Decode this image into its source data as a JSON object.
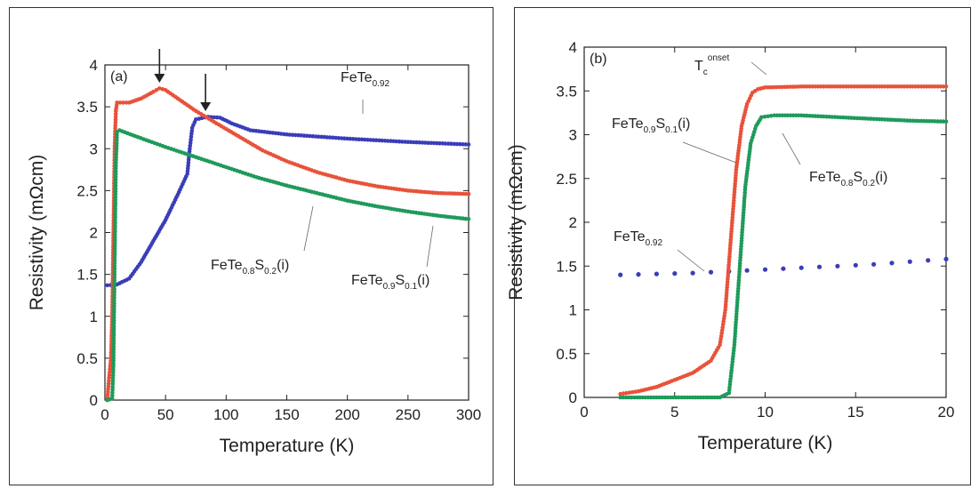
{
  "chart_data": [
    {
      "type": "scatter",
      "panel_label": "(a)",
      "xlabel": "Temperature (K)",
      "ylabel": "Resistivity (mΩcm)",
      "xlim": [
        0,
        300
      ],
      "ylim": [
        0,
        4
      ],
      "xticks": [
        "0",
        "50",
        "100",
        "150",
        "200",
        "250",
        "300"
      ],
      "yticks": [
        "0",
        "0.5",
        "1",
        "1.5",
        "2",
        "2.5",
        "3",
        "3.5",
        "4"
      ],
      "colors": {
        "FeTe0.92": "#3a3db8",
        "FeTe0.9S0.1(i)": "#e8523a",
        "FeTe0.8S0.2(i)": "#1f9a5a"
      },
      "series": [
        {
          "name": "FeTe0.92",
          "points": [
            [
              2,
              1.37
            ],
            [
              10,
              1.38
            ],
            [
              20,
              1.45
            ],
            [
              30,
              1.65
            ],
            [
              40,
              1.9
            ],
            [
              50,
              2.15
            ],
            [
              60,
              2.45
            ],
            [
              68,
              2.7
            ],
            [
              70,
              3.0
            ],
            [
              72,
              3.25
            ],
            [
              75,
              3.35
            ],
            [
              85,
              3.38
            ],
            [
              95,
              3.37
            ],
            [
              105,
              3.3
            ],
            [
              120,
              3.22
            ],
            [
              150,
              3.17
            ],
            [
              200,
              3.12
            ],
            [
              250,
              3.08
            ],
            [
              300,
              3.05
            ]
          ]
        },
        {
          "name": "FeTe0.9S0.1(i)",
          "points": [
            [
              2,
              0.0
            ],
            [
              3,
              0.2
            ],
            [
              5,
              0.5
            ],
            [
              6,
              1.0
            ],
            [
              7,
              2.0
            ],
            [
              8,
              3.0
            ],
            [
              9,
              3.45
            ],
            [
              10,
              3.55
            ],
            [
              20,
              3.55
            ],
            [
              30,
              3.6
            ],
            [
              40,
              3.68
            ],
            [
              45,
              3.72
            ],
            [
              50,
              3.7
            ],
            [
              60,
              3.6
            ],
            [
              75,
              3.45
            ],
            [
              90,
              3.32
            ],
            [
              110,
              3.15
            ],
            [
              130,
              2.98
            ],
            [
              150,
              2.85
            ],
            [
              175,
              2.72
            ],
            [
              200,
              2.62
            ],
            [
              225,
              2.55
            ],
            [
              250,
              2.5
            ],
            [
              275,
              2.47
            ],
            [
              300,
              2.46
            ]
          ]
        },
        {
          "name": "FeTe0.8S0.2(i)",
          "points": [
            [
              2,
              0.0
            ],
            [
              6,
              0.02
            ],
            [
              7,
              0.4
            ],
            [
              8,
              1.6
            ],
            [
              9,
              2.8
            ],
            [
              10,
              3.2
            ],
            [
              12,
              3.22
            ],
            [
              25,
              3.15
            ],
            [
              50,
              3.02
            ],
            [
              75,
              2.9
            ],
            [
              100,
              2.78
            ],
            [
              125,
              2.66
            ],
            [
              150,
              2.56
            ],
            [
              175,
              2.47
            ],
            [
              200,
              2.38
            ],
            [
              225,
              2.31
            ],
            [
              250,
              2.25
            ],
            [
              275,
              2.2
            ],
            [
              300,
              2.16
            ]
          ]
        }
      ],
      "arrows_at_x": [
        45,
        83
      ],
      "annotations": [
        {
          "base": "FeTe",
          "sub": "0.92",
          "tail": "",
          "sub2": "",
          "end": ""
        },
        {
          "base": "FeTe",
          "sub": "0.8",
          "tail": "S",
          "sub2": "0.2",
          "end": "(i)"
        },
        {
          "base": "FeTe",
          "sub": "0.9",
          "tail": "S",
          "sub2": "0.1",
          "end": "(i)"
        }
      ]
    },
    {
      "type": "scatter",
      "panel_label": "(b)",
      "xlabel": "Temperature (K)",
      "ylabel": "Resistivity (mΩcm)",
      "xlim": [
        0,
        20
      ],
      "ylim": [
        0,
        4
      ],
      "xticks": [
        "0",
        "5",
        "10",
        "15",
        "20"
      ],
      "yticks": [
        "0",
        "0.5",
        "1",
        "1.5",
        "2",
        "2.5",
        "3",
        "3.5",
        "4"
      ],
      "colors": {
        "FeTe0.92": "#3a3db8",
        "FeTe0.9S0.1(i)": "#e8523a",
        "FeTe0.8S0.2(i)": "#1f9a5a"
      },
      "series": [
        {
          "name": "FeTe0.92",
          "points": [
            [
              2,
              1.4
            ],
            [
              4,
              1.41
            ],
            [
              6,
              1.42
            ],
            [
              8,
              1.44
            ],
            [
              10,
              1.46
            ],
            [
              12,
              1.48
            ],
            [
              14,
              1.5
            ],
            [
              16,
              1.52
            ],
            [
              18,
              1.55
            ],
            [
              20,
              1.58
            ]
          ]
        },
        {
          "name": "FeTe0.9S0.1(i)",
          "points": [
            [
              2,
              0.04
            ],
            [
              3,
              0.07
            ],
            [
              4,
              0.12
            ],
            [
              5,
              0.2
            ],
            [
              6,
              0.28
            ],
            [
              7,
              0.42
            ],
            [
              7.5,
              0.6
            ],
            [
              7.8,
              1.0
            ],
            [
              8.1,
              1.8
            ],
            [
              8.4,
              2.6
            ],
            [
              8.7,
              3.1
            ],
            [
              9.0,
              3.35
            ],
            [
              9.3,
              3.48
            ],
            [
              9.6,
              3.52
            ],
            [
              10,
              3.54
            ],
            [
              12,
              3.55
            ],
            [
              14,
              3.55
            ],
            [
              16,
              3.55
            ],
            [
              18,
              3.55
            ],
            [
              20,
              3.55
            ]
          ]
        },
        {
          "name": "FeTe0.8S0.2(i)",
          "points": [
            [
              2,
              0.0
            ],
            [
              4,
              0.0
            ],
            [
              6,
              0.0
            ],
            [
              7.5,
              0.0
            ],
            [
              8.0,
              0.05
            ],
            [
              8.3,
              0.6
            ],
            [
              8.6,
              1.5
            ],
            [
              8.9,
              2.4
            ],
            [
              9.2,
              2.9
            ],
            [
              9.5,
              3.1
            ],
            [
              9.8,
              3.2
            ],
            [
              10.5,
              3.22
            ],
            [
              12,
              3.22
            ],
            [
              14,
              3.2
            ],
            [
              16,
              3.18
            ],
            [
              18,
              3.16
            ],
            [
              20,
              3.15
            ]
          ]
        }
      ],
      "annotations": [
        {
          "base": "T",
          "sub": "c",
          "sup": "onset"
        },
        {
          "base": "FeTe",
          "sub": "0.9",
          "tail": "S",
          "sub2": "0.1",
          "end": "(i)"
        },
        {
          "base": "FeTe",
          "sub": "0.8",
          "tail": "S",
          "sub2": "0.2",
          "end": "(i)"
        },
        {
          "base": "FeTe",
          "sub": "0.92",
          "tail": "",
          "sub2": "",
          "end": ""
        }
      ]
    }
  ]
}
